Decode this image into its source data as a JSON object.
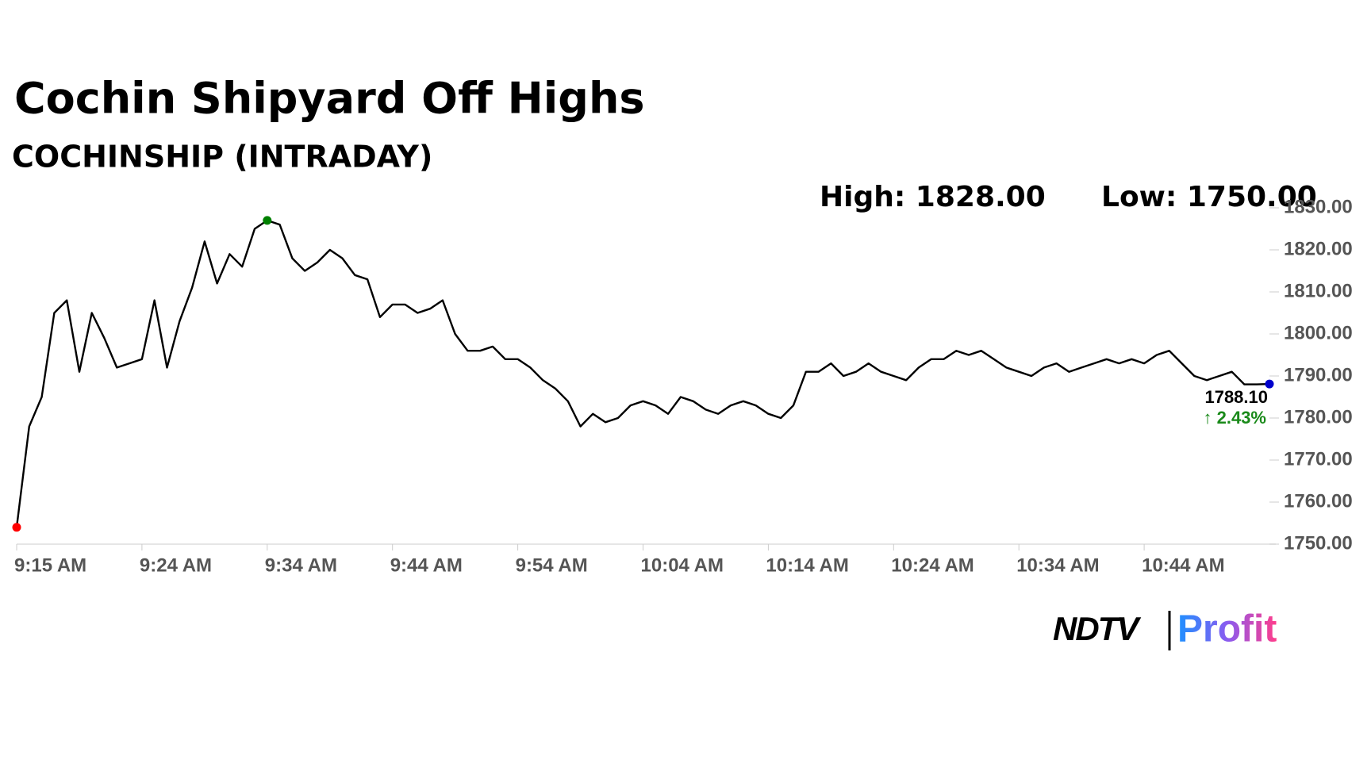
{
  "chart_data": {
    "type": "line",
    "title": "Cochin Shipyard Off Highs",
    "subtitle": "COCHINSHIP (INTRADAY)",
    "high_label": "High: 1828.00",
    "low_label": "Low: 1750.00",
    "x": [
      "9:15 AM",
      "9:15 AM",
      "9:16 AM",
      "9:17 AM",
      "9:18 AM",
      "9:19 AM",
      "9:20 AM",
      "9:21 AM",
      "9:22 AM",
      "9:23 AM",
      "9:24 AM",
      "9:25 AM",
      "9:26 AM",
      "9:27 AM",
      "9:28 AM",
      "9:29 AM",
      "9:30 AM",
      "9:31 AM",
      "9:32 AM",
      "9:33 AM",
      "9:34 AM",
      "9:35 AM",
      "9:36 AM",
      "9:37 AM",
      "9:38 AM",
      "9:39 AM",
      "9:40 AM",
      "9:41 AM",
      "9:42 AM",
      "9:43 AM",
      "9:44 AM",
      "9:45 AM",
      "9:46 AM",
      "9:47 AM",
      "9:48 AM",
      "9:49 AM",
      "9:50 AM",
      "9:51 AM",
      "9:52 AM",
      "9:53 AM",
      "9:54 AM",
      "9:55 AM",
      "9:56 AM",
      "9:57 AM",
      "9:58 AM",
      "9:59 AM",
      "10:00 AM",
      "10:01 AM",
      "10:02 AM",
      "10:03 AM",
      "10:04 AM",
      "10:05 AM",
      "10:06 AM",
      "10:07 AM",
      "10:08 AM",
      "10:09 AM",
      "10:10 AM",
      "10:11 AM",
      "10:12 AM",
      "10:13 AM",
      "10:14 AM",
      "10:15 AM",
      "10:16 AM",
      "10:17 AM",
      "10:18 AM",
      "10:19 AM",
      "10:20 AM",
      "10:21 AM",
      "10:22 AM",
      "10:23 AM",
      "10:24 AM",
      "10:25 AM",
      "10:26 AM",
      "10:27 AM",
      "10:28 AM",
      "10:29 AM",
      "10:30 AM",
      "10:31 AM",
      "10:32 AM",
      "10:33 AM",
      "10:34 AM",
      "10:35 AM",
      "10:36 AM",
      "10:37 AM",
      "10:38 AM",
      "10:39 AM",
      "10:40 AM",
      "10:41 AM",
      "10:42 AM",
      "10:43 AM",
      "10:44 AM",
      "10:45 AM",
      "10:46 AM",
      "10:47 AM",
      "10:48 AM",
      "10:49 AM",
      "10:50 AM",
      "10:51 AM",
      "10:52 AM",
      "10:53 AM",
      "10:54 AM"
    ],
    "series": [
      {
        "color": "#000000",
        "values": [
          1754,
          1778,
          1785,
          1805,
          1808,
          1791,
          1805,
          1799,
          1792,
          1793,
          1794,
          1808,
          1792,
          1803,
          1811,
          1822,
          1812,
          1819,
          1816,
          1825,
          1827,
          1826,
          1818,
          1815,
          1817,
          1820,
          1818,
          1814,
          1813,
          1804,
          1807,
          1807,
          1805,
          1806,
          1808,
          1800,
          1796,
          1796,
          1797,
          1794,
          1794,
          1792,
          1789,
          1787,
          1784,
          1778,
          1781,
          1779,
          1780,
          1783,
          1784,
          1783,
          1781,
          1785,
          1784,
          1782,
          1781,
          1783,
          1784,
          1783,
          1781,
          1780,
          1783,
          1791,
          1791,
          1793,
          1790,
          1791,
          1793,
          1791,
          1790,
          1789,
          1792,
          1794,
          1794,
          1796,
          1795,
          1796,
          1794,
          1792,
          1791,
          1790,
          1792,
          1793,
          1791,
          1792,
          1793,
          1794,
          1793,
          1794,
          1793,
          1795,
          1796,
          1793,
          1790,
          1789,
          1790,
          1791,
          1788,
          1788,
          1788.1
        ]
      }
    ],
    "last_value_label": "1788.10",
    "change_label": "↑ 2.43%",
    "xticks": [
      {
        "value": 0,
        "label": "9:15 AM"
      },
      {
        "value": 10,
        "label": "9:24 AM"
      },
      {
        "value": 20,
        "label": "9:34 AM"
      },
      {
        "value": 30,
        "label": "9:44 AM"
      },
      {
        "value": 40,
        "label": "9:54 AM"
      },
      {
        "value": 50,
        "label": "10:04 AM"
      },
      {
        "value": 60,
        "label": "10:14 AM"
      },
      {
        "value": 70,
        "label": "10:24 AM"
      },
      {
        "value": 80,
        "label": "10:34 AM"
      },
      {
        "value": 90,
        "label": "10:44 AM"
      }
    ],
    "ylim": [
      1750,
      1830
    ],
    "yticks": [
      {
        "value": 1750,
        "label": "1750.00"
      },
      {
        "value": 1760,
        "label": "1760.00"
      },
      {
        "value": 1770,
        "label": "1770.00"
      },
      {
        "value": 1780,
        "label": "1780.00"
      },
      {
        "value": 1790,
        "label": "1790.00"
      },
      {
        "value": 1800,
        "label": "1800.00"
      },
      {
        "value": 1810,
        "label": "1810.00"
      },
      {
        "value": 1820,
        "label": "1820.00"
      },
      {
        "value": 1830,
        "label": "1830.00"
      }
    ],
    "logo": {
      "brand": "NDTV",
      "product": "Profit"
    }
  }
}
